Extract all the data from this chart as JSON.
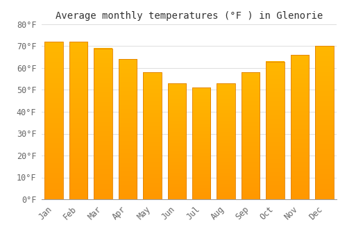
{
  "title": "Average monthly temperatures (°F ) in Glenorie",
  "months": [
    "Jan",
    "Feb",
    "Mar",
    "Apr",
    "May",
    "Jun",
    "Jul",
    "Aug",
    "Sep",
    "Oct",
    "Nov",
    "Dec"
  ],
  "values": [
    72,
    72,
    69,
    64,
    58,
    53,
    51,
    53,
    58,
    63,
    66,
    70
  ],
  "bar_color_top": "#FFB700",
  "bar_color_bottom": "#FF9800",
  "bar_edge_color": "#E08000",
  "background_color": "#FFFFFF",
  "plot_bg_color": "#FFFFFF",
  "grid_color": "#DDDDDD",
  "ylim": [
    0,
    80
  ],
  "yticks": [
    0,
    10,
    20,
    30,
    40,
    50,
    60,
    70,
    80
  ],
  "title_fontsize": 10,
  "tick_fontsize": 8.5,
  "font_family": "monospace"
}
